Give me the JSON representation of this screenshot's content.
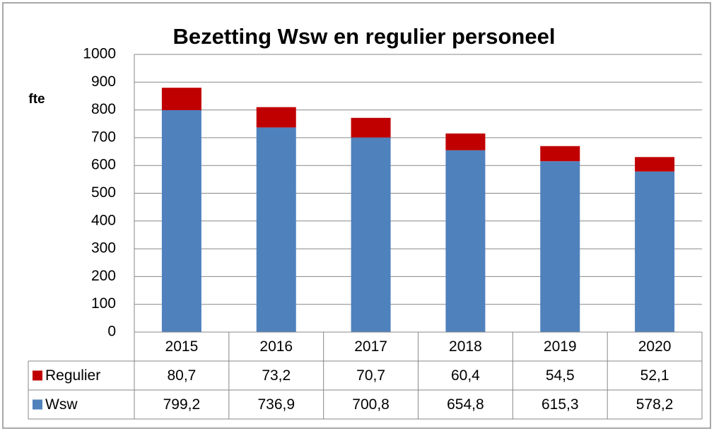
{
  "chart_data": {
    "type": "bar",
    "stacked": true,
    "title": "Bezetting Wsw en regulier personeel",
    "y_label": "fte",
    "categories": [
      "2015",
      "2016",
      "2017",
      "2018",
      "2019",
      "2020"
    ],
    "series": [
      {
        "name": "Wsw",
        "color": "#4f81bd",
        "values": [
          799.2,
          736.9,
          700.8,
          654.8,
          615.3,
          578.2
        ],
        "value_labels": [
          "799,2",
          "736,9",
          "700,8",
          "654,8",
          "615,3",
          "578,2"
        ]
      },
      {
        "name": "Regulier",
        "color": "#c00000",
        "values": [
          80.7,
          73.2,
          70.7,
          60.4,
          54.5,
          52.1
        ],
        "value_labels": [
          "80,7",
          "73,2",
          "70,7",
          "60,4",
          "54,5",
          "52,1"
        ]
      }
    ],
    "ylim": [
      0,
      1000
    ],
    "yticks": [
      0,
      100,
      200,
      300,
      400,
      500,
      600,
      700,
      800,
      900,
      1000
    ],
    "grid": true
  }
}
